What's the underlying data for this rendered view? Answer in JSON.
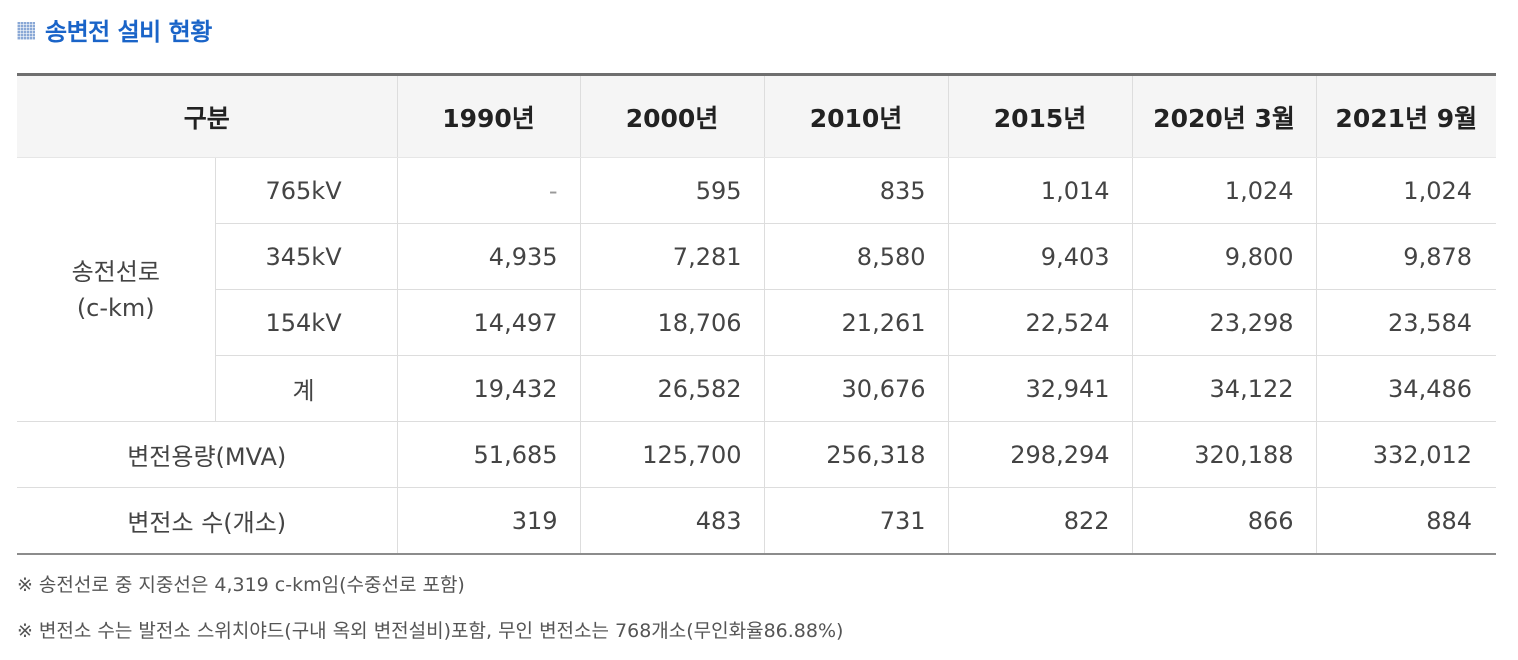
{
  "title": "송변전 설비 현황",
  "table": {
    "header": {
      "category": "구분",
      "years": [
        "1990년",
        "2000년",
        "2010년",
        "2015년",
        "2020년 3월",
        "2021년 9월"
      ]
    },
    "transmission": {
      "label_line1": "송전선로",
      "label_line2": "(c-km)",
      "rows": [
        {
          "label": "765kV",
          "values": [
            "-",
            "595",
            "835",
            "1,014",
            "1,024",
            "1,024"
          ]
        },
        {
          "label": "345kV",
          "values": [
            "4,935",
            "7,281",
            "8,580",
            "9,403",
            "9,800",
            "9,878"
          ]
        },
        {
          "label": "154kV",
          "values": [
            "14,497",
            "18,706",
            "21,261",
            "22,524",
            "23,298",
            "23,584"
          ]
        },
        {
          "label": "계",
          "values": [
            "19,432",
            "26,582",
            "30,676",
            "32,941",
            "34,122",
            "34,486"
          ]
        }
      ]
    },
    "capacity": {
      "label": "변전용량(MVA)",
      "values": [
        "51,685",
        "125,700",
        "256,318",
        "298,294",
        "320,188",
        "332,012"
      ]
    },
    "substations": {
      "label": "변전소 수(개소)",
      "values": [
        "319",
        "483",
        "731",
        "822",
        "866",
        "884"
      ]
    }
  },
  "notes": [
    {
      "mark": "※",
      "text": "송전선로 중 지중선은 4,319 c-km임(수중선로 포함)"
    },
    {
      "mark": "※",
      "text": "변전소 수는 발전소 스위치야드(구내 옥외 변전설비)포함, 무인 변전소는 768개소(무인화율86.88%)"
    }
  ]
}
